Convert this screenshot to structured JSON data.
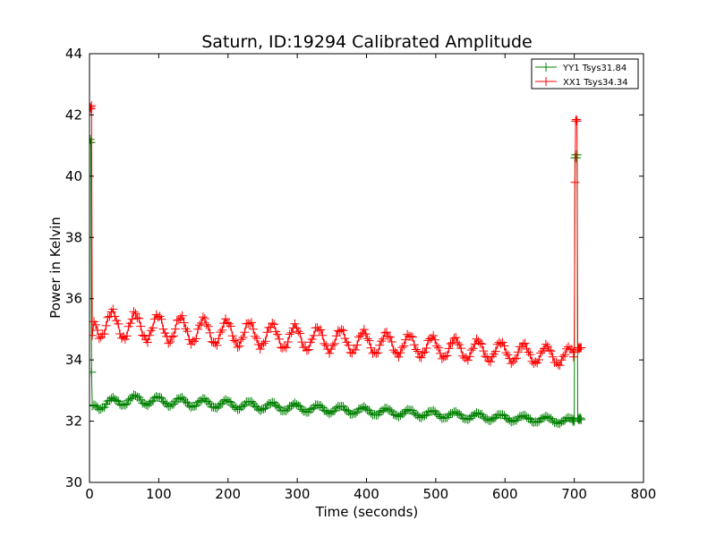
{
  "chart_data": {
    "type": "line",
    "title": "Saturn, ID:19294 Calibrated Amplitude",
    "xlabel": "Time (seconds)",
    "ylabel": "Power in Kelvin",
    "xlim": [
      0,
      800
    ],
    "ylim": [
      30,
      44
    ],
    "xticks": [
      0,
      100,
      200,
      300,
      400,
      500,
      600,
      700,
      800
    ],
    "yticks": [
      30,
      32,
      34,
      36,
      38,
      40,
      42,
      44
    ],
    "grid": false,
    "legend_position": "top-right",
    "marker": "+",
    "series": [
      {
        "name": "YY1 Tsys31.84",
        "color": "#008000",
        "points": [
          [
            0,
            41.1
          ],
          [
            1,
            41.2
          ],
          [
            2,
            41.1
          ],
          [
            3,
            33.6
          ],
          [
            4,
            32.5
          ],
          [
            706,
            32.05
          ],
          [
            707,
            32.1
          ],
          [
            708,
            32.05
          ],
          [
            709,
            32.1
          ],
          [
            710,
            32.05
          ]
        ],
        "oscillation": {
          "t_start": 4,
          "t_end": 700,
          "step": 2.5,
          "start_value": 32.5,
          "end_value": 32.0,
          "drift_mid": 32.7,
          "amplitude": 0.15,
          "period": 33,
          "phase": 1.6
        },
        "end_spike": [
          [
            698,
            32.0
          ],
          [
            700,
            32.0
          ],
          [
            701,
            40.6
          ],
          [
            702,
            40.7
          ],
          [
            703,
            40.6
          ],
          [
            704,
            40.7
          ],
          [
            705,
            32.1
          ]
        ]
      },
      {
        "name": "XX1 Tsys34.34",
        "color": "#ff0000",
        "points": [
          [
            0,
            42.2
          ],
          [
            1,
            42.25
          ],
          [
            2,
            42.2
          ],
          [
            3,
            42.3
          ],
          [
            4,
            34.8
          ],
          [
            705,
            34.4
          ],
          [
            706,
            34.4
          ],
          [
            707,
            34.35
          ],
          [
            708,
            34.4
          ],
          [
            709,
            34.4
          ],
          [
            710,
            34.4
          ]
        ],
        "oscillation": {
          "t_start": 4,
          "t_end": 700,
          "step": 2.5,
          "start_value": 35.2,
          "end_value": 34.1,
          "drift_mid": 35.1,
          "amplitude": 0.45,
          "period": 33,
          "phase": 1.6
        },
        "end_spike": [
          [
            699,
            34.1
          ],
          [
            700,
            34.3
          ],
          [
            701,
            39.8
          ],
          [
            702,
            41.8
          ],
          [
            703,
            41.85
          ],
          [
            704,
            41.8
          ],
          [
            705,
            34.4
          ]
        ]
      }
    ]
  }
}
